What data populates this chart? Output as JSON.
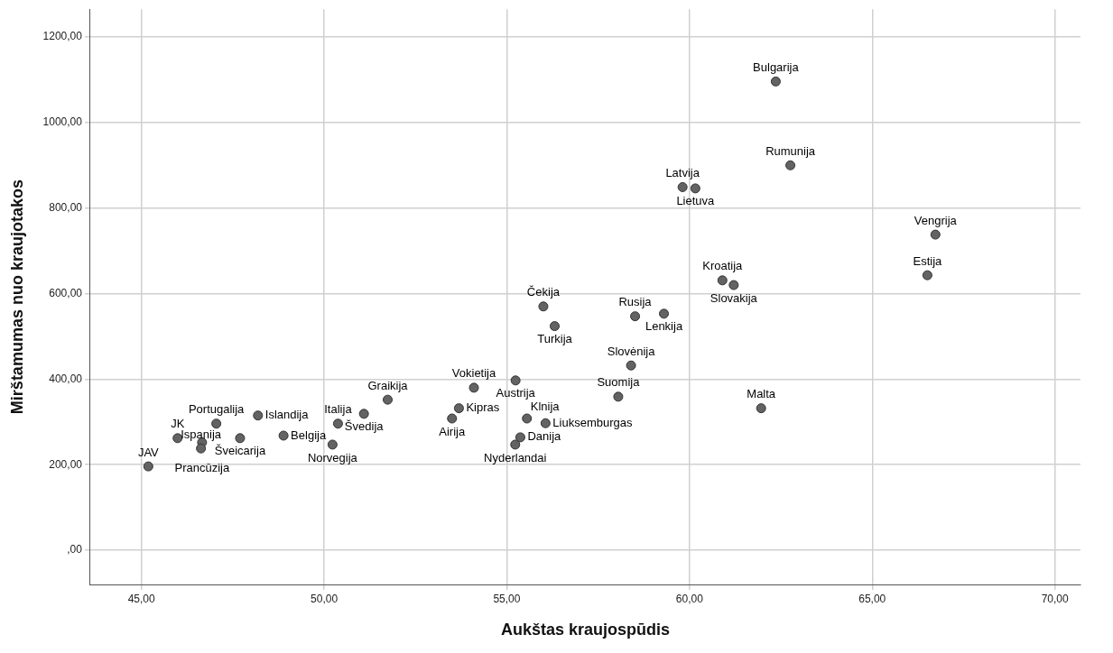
{
  "chart_data": {
    "type": "scatter",
    "xlabel": "Aukštas kraujospūdis",
    "ylabel": "Mirštamumas nuo kraujotakos",
    "x": [
      45.19,
      45.99,
      46.66,
      46.63,
      47.05,
      47.7,
      48.19,
      48.89,
      50.38,
      50.23,
      51.09,
      51.74,
      53.69,
      53.5,
      54.1,
      55.24,
      55.55,
      56.06,
      55.37,
      55.23,
      56.0,
      56.31,
      58.51,
      58.4,
      58.05,
      62.36,
      62.76,
      59.81,
      60.16,
      60.9,
      61.21,
      66.51,
      59.3,
      61.96,
      66.73
    ],
    "series": [
      {
        "color": "#636363",
        "values": [
          196,
          262,
          252,
          238,
          296,
          262,
          315,
          268,
          296,
          247,
          319,
          352,
          332,
          308,
          380,
          397,
          308,
          297,
          264,
          247,
          570,
          524,
          547,
          432,
          359,
          1096,
          900,
          849,
          846,
          631,
          620,
          643,
          553,
          332,
          738
        ]
      }
    ],
    "annotations": [
      {
        "text": "JAV",
        "x": 45.19,
        "y": 196
      },
      {
        "text": "JK",
        "x": 45.99,
        "y": 262
      },
      {
        "text": "Prancūzija",
        "x": 46.66,
        "y": 252
      },
      {
        "text": "Ispanija",
        "x": 46.63,
        "y": 238
      },
      {
        "text": "Portugalija",
        "x": 47.05,
        "y": 296
      },
      {
        "text": "Šveicarija",
        "x": 47.7,
        "y": 262
      },
      {
        "text": "Islandija",
        "x": 48.19,
        "y": 315
      },
      {
        "text": "Belgija",
        "x": 48.89,
        "y": 268
      },
      {
        "text": "Italija",
        "x": 50.38,
        "y": 296
      },
      {
        "text": "Norvegija",
        "x": 50.23,
        "y": 247
      },
      {
        "text": "Švedija",
        "x": 51.09,
        "y": 319
      },
      {
        "text": "Graikija",
        "x": 51.74,
        "y": 352
      },
      {
        "text": "Kipras",
        "x": 53.69,
        "y": 332
      },
      {
        "text": "Airija",
        "x": 53.5,
        "y": 308
      },
      {
        "text": "Vokietija",
        "x": 54.1,
        "y": 380
      },
      {
        "text": "Austrija",
        "x": 55.24,
        "y": 397
      },
      {
        "text": "Klnija",
        "x": 55.55,
        "y": 308
      },
      {
        "text": "Liuksemburgas",
        "x": 56.06,
        "y": 297
      },
      {
        "text": "Danija",
        "x": 55.37,
        "y": 264
      },
      {
        "text": "Nyderlandai",
        "x": 55.23,
        "y": 247
      },
      {
        "text": "Čekija",
        "x": 56.0,
        "y": 570
      },
      {
        "text": "Turkija",
        "x": 56.31,
        "y": 524
      },
      {
        "text": "Rusija",
        "x": 58.51,
        "y": 547
      },
      {
        "text": "Slovėnija",
        "x": 58.4,
        "y": 432
      },
      {
        "text": "Suomija",
        "x": 58.05,
        "y": 359
      },
      {
        "text": "Bulgarija",
        "x": 62.36,
        "y": 1096
      },
      {
        "text": "Rumunija",
        "x": 62.76,
        "y": 900
      },
      {
        "text": "Latvija",
        "x": 59.81,
        "y": 849
      },
      {
        "text": "Lietuva",
        "x": 60.16,
        "y": 846
      },
      {
        "text": "Kroatija",
        "x": 60.9,
        "y": 631
      },
      {
        "text": "Slovakija",
        "x": 61.21,
        "y": 620
      },
      {
        "text": "Estija",
        "x": 66.51,
        "y": 643
      },
      {
        "text": "Lenkija",
        "x": 59.3,
        "y": 553
      },
      {
        "text": "Malta",
        "x": 61.96,
        "y": 332
      },
      {
        "text": "Vengrija",
        "x": 66.73,
        "y": 738
      }
    ],
    "xlim": [
      43.6,
      70.7
    ],
    "xticks": [
      {
        "value": 45,
        "label": "45,00"
      },
      {
        "value": 50,
        "label": "50,00"
      },
      {
        "value": 55,
        "label": "55,00"
      },
      {
        "value": 60,
        "label": "60,00"
      },
      {
        "value": 65,
        "label": "65,00"
      },
      {
        "value": 70,
        "label": "70,00"
      }
    ],
    "ylim": [
      -80,
      1265
    ],
    "yticks": [
      {
        "value": 0,
        "label": ",00"
      },
      {
        "value": 200,
        "label": "200,00"
      },
      {
        "value": 400,
        "label": "400,00"
      },
      {
        "value": 600,
        "label": "600,00"
      },
      {
        "value": 800,
        "label": "800,00"
      },
      {
        "value": 1000,
        "label": "1000,00"
      },
      {
        "value": 1200,
        "label": "1200,00"
      }
    ],
    "grid": true,
    "legend": false,
    "marker": "circle"
  }
}
